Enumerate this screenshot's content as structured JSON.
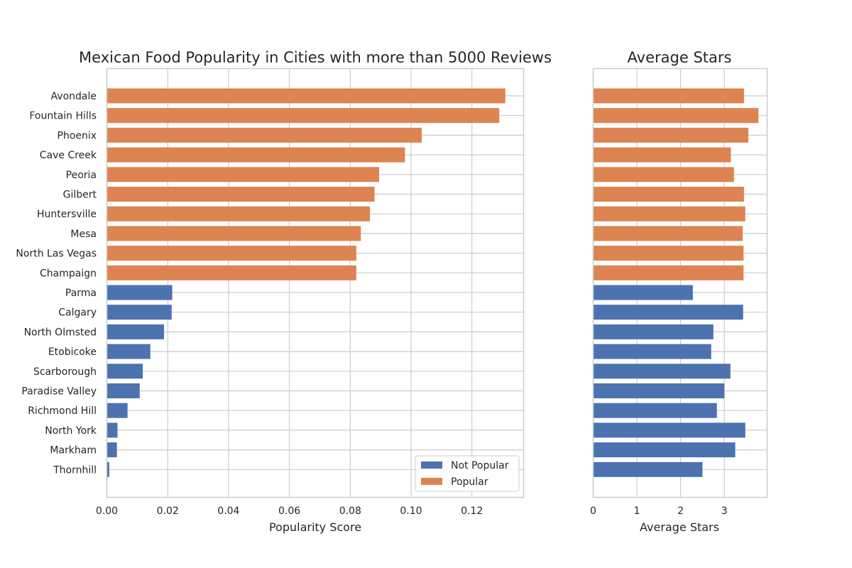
{
  "chart_data": [
    {
      "type": "bar",
      "orientation": "horizontal",
      "title": "Mexican Food Popularity in Cities with more than 5000 Reviews",
      "xlabel": "Popularity Score",
      "ylabel": "",
      "xlim": [
        0,
        0.137
      ],
      "xticks": [
        "0.00",
        "0.02",
        "0.04",
        "0.06",
        "0.08",
        "0.10",
        "0.12"
      ],
      "xtick_values": [
        0,
        0.02,
        0.04,
        0.06,
        0.08,
        0.1,
        0.12
      ],
      "grid": true,
      "legend_position": "bottom-right",
      "categories": [
        "Avondale",
        "Fountain Hills",
        "Phoenix",
        "Cave Creek",
        "Peoria",
        "Gilbert",
        "Huntersville",
        "Mesa",
        "North Las Vegas",
        "Champaign",
        "Parma",
        "Calgary",
        "North Olmsted",
        "Etobicoke",
        "Scarborough",
        "Paradise Valley",
        "Richmond Hill",
        "North York",
        "Markham",
        "Thornhill"
      ],
      "values": [
        0.131,
        0.129,
        0.1035,
        0.098,
        0.0895,
        0.088,
        0.0865,
        0.0835,
        0.082,
        0.082,
        0.0215,
        0.0213,
        0.0188,
        0.0143,
        0.0118,
        0.0108,
        0.0068,
        0.0035,
        0.0033,
        0.0008
      ],
      "groups": [
        "Popular",
        "Popular",
        "Popular",
        "Popular",
        "Popular",
        "Popular",
        "Popular",
        "Popular",
        "Popular",
        "Popular",
        "Not Popular",
        "Not Popular",
        "Not Popular",
        "Not Popular",
        "Not Popular",
        "Not Popular",
        "Not Popular",
        "Not Popular",
        "Not Popular",
        "Not Popular"
      ],
      "legend": [
        {
          "label": "Not Popular",
          "color": "#4c72b0"
        },
        {
          "label": "Popular",
          "color": "#dd8452"
        }
      ]
    },
    {
      "type": "bar",
      "orientation": "horizontal",
      "title": "Average Stars",
      "xlabel": "Average Stars",
      "ylabel": "",
      "xlim": [
        0,
        3.98
      ],
      "xticks": [
        "0",
        "1",
        "2",
        "3"
      ],
      "xtick_values": [
        0,
        1,
        2,
        3
      ],
      "grid": true,
      "values": [
        3.45,
        3.78,
        3.55,
        3.15,
        3.22,
        3.45,
        3.48,
        3.42,
        3.44,
        3.44,
        2.28,
        3.43,
        2.75,
        2.7,
        3.14,
        3.0,
        2.83,
        3.48,
        3.25,
        2.5
      ]
    }
  ],
  "colors": {
    "popular": "#dd8452",
    "not_popular": "#4c72b0",
    "grid": "#cccccc",
    "spine": "#cccccc",
    "text": "#262626"
  }
}
